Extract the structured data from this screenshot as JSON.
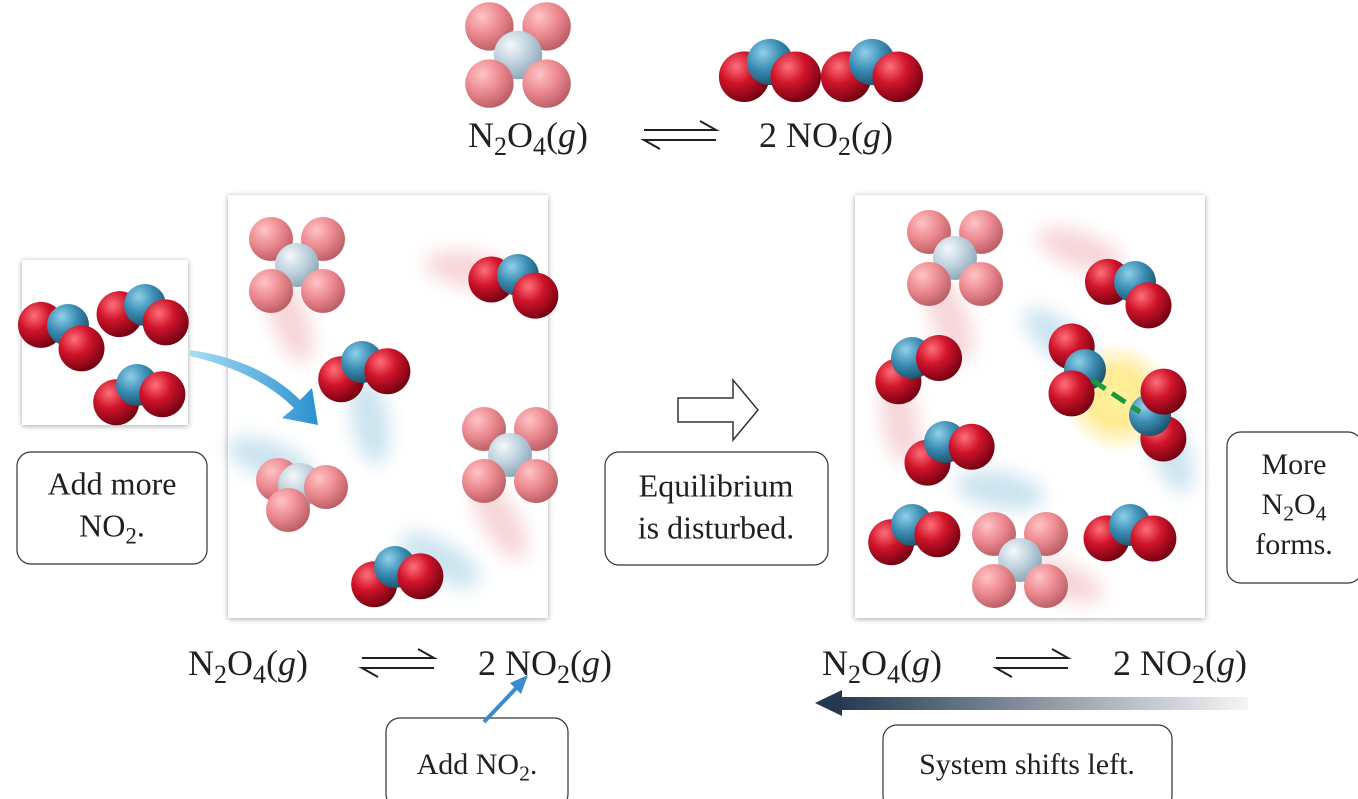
{
  "top_equation": {
    "reactant": [
      "N",
      "2",
      "O",
      "4",
      "(",
      "g",
      ")"
    ],
    "product": [
      "2 NO",
      "2",
      "(",
      "g",
      ")"
    ]
  },
  "left_panel": {
    "callout": [
      [
        "Add more"
      ],
      [
        "NO",
        "2",
        "."
      ]
    ],
    "equation": {
      "reactant": [
        "N",
        "2",
        "O",
        "4",
        "(",
        "g",
        ")"
      ],
      "product": [
        "2 NO",
        "2",
        "(",
        "g",
        ")"
      ]
    },
    "add_label": [
      [
        "Add NO",
        "2",
        "."
      ]
    ]
  },
  "middle": {
    "callout": [
      [
        "Equilibrium"
      ],
      [
        "is disturbed."
      ]
    ]
  },
  "right_panel": {
    "callout": [
      [
        "More"
      ],
      [
        "N",
        "2",
        "O",
        "4"
      ],
      [
        "forms."
      ]
    ],
    "equation": {
      "reactant": [
        "N",
        "2",
        "O",
        "4",
        "(",
        "g",
        ")"
      ],
      "product": [
        "2 NO",
        "2",
        "(",
        "g",
        ")"
      ]
    },
    "shift_label": [
      [
        "System shifts left."
      ]
    ]
  }
}
